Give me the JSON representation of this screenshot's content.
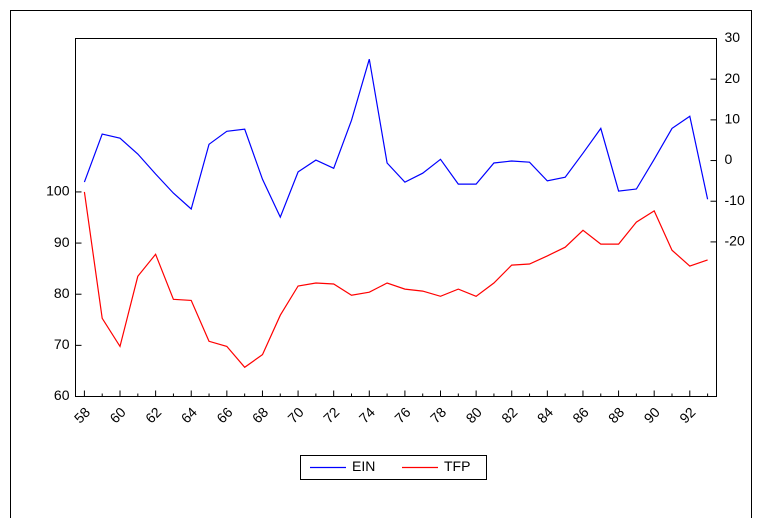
{
  "chart_data": {
    "type": "line",
    "categories": [
      "58",
      null,
      "60",
      null,
      "62",
      null,
      "64",
      null,
      "66",
      null,
      "68",
      null,
      "70",
      null,
      "72",
      null,
      "74",
      null,
      "76",
      null,
      "78",
      null,
      "80",
      null,
      "82",
      null,
      "84",
      null,
      "86",
      null,
      "88",
      null,
      "90",
      null,
      "92",
      null
    ],
    "series": [
      {
        "name": "EIN",
        "color": "#0000ff",
        "axis": "y2",
        "values": [
          -5.3,
          6.5,
          5.5,
          1.6,
          -3.3,
          -8,
          -11.9,
          4,
          7.2,
          7.7,
          -4.6,
          -13.9,
          -2.8,
          0.1,
          -1.9,
          9.9,
          24.9,
          -0.6,
          -5.3,
          -3.1,
          0.3,
          -5.8,
          -5.8,
          -0.6,
          -0.1,
          -0.4,
          -5,
          -4.1,
          1.8,
          7.9,
          -7.5,
          -7,
          0.3,
          7.9,
          10.9,
          -9.5
        ]
      },
      {
        "name": "TFP",
        "color": "#ff0000",
        "values": [
          100,
          75.3,
          69.8,
          83.5,
          87.8,
          79,
          78.8,
          70.8,
          69.8,
          65.7,
          68.2,
          75.9,
          81.6,
          82.2,
          82,
          79.8,
          80.4,
          82.2,
          81,
          80.6,
          79.6,
          81,
          79.6,
          82.2,
          85.7,
          85.9,
          87.5,
          89.2,
          92.5,
          89.8,
          89.8,
          94.1,
          96.3,
          88.6,
          85.5,
          86.7
        ]
      }
    ],
    "ylim": [
      60,
      130
    ],
    "yticks": [
      60,
      70,
      80,
      90,
      100
    ],
    "y2lim": [
      -58,
      30
    ],
    "y2ticks": [
      -20,
      -10,
      0,
      10,
      20,
      30
    ],
    "legend": "bottom"
  }
}
